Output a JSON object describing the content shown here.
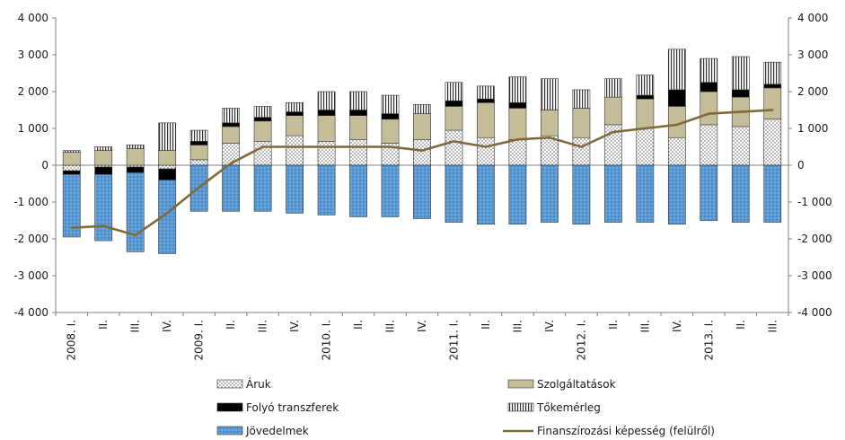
{
  "chart_data": {
    "type": "bar",
    "subtype": "stacked-bar-with-line",
    "title": "",
    "xlabel": "",
    "ylabel": "",
    "ylim": [
      -4000,
      4000
    ],
    "yticks": [
      4000,
      3000,
      2000,
      1000,
      0,
      -1000,
      -2000,
      -3000,
      -4000
    ],
    "ytick_labels": [
      "4 000",
      "3 000",
      "2 000",
      "1 000",
      "0",
      "-1 000",
      "-2 000",
      "-3 000",
      "-4 000"
    ],
    "right_axis": {
      "ylim": [
        -4000,
        4000
      ]
    },
    "grid": false,
    "legend_position": "bottom",
    "categories": [
      "2008. I.",
      "II.",
      "III.",
      "IV.",
      "2009. I.",
      "II.",
      "III.",
      "IV.",
      "2010. I.",
      "II.",
      "III.",
      "IV.",
      "2011. I.",
      "II.",
      "III.",
      "IV.",
      "2012. I.",
      "II.",
      "III.",
      "IV.",
      "2013. I.",
      "II.",
      "III."
    ],
    "series": [
      {
        "name": "Áruk",
        "type": "bar",
        "color": "#ffffff",
        "pattern": "dots",
        "values": [
          -150,
          -50,
          -50,
          -100,
          150,
          600,
          650,
          800,
          650,
          700,
          600,
          700,
          950,
          750,
          700,
          800,
          750,
          1100,
          1000,
          750,
          1100,
          1050,
          1250
        ]
      },
      {
        "name": "Szolgáltatások",
        "type": "bar",
        "color": "#c4bd97",
        "values": [
          350,
          400,
          450,
          400,
          400,
          450,
          550,
          550,
          700,
          650,
          650,
          700,
          650,
          950,
          850,
          700,
          800,
          750,
          800,
          850,
          900,
          800,
          850
        ]
      },
      {
        "name": "Folyó transzferek",
        "type": "bar",
        "color": "#000000",
        "values": [
          -100,
          -200,
          -150,
          -300,
          100,
          100,
          100,
          100,
          150,
          150,
          150,
          0,
          150,
          100,
          150,
          0,
          0,
          0,
          100,
          450,
          250,
          200,
          100
        ]
      },
      {
        "name": "Tőkemérleg",
        "type": "bar",
        "color": "#ffffff",
        "pattern": "vertical-hatch",
        "values": [
          50,
          100,
          100,
          750,
          300,
          400,
          300,
          250,
          500,
          500,
          500,
          250,
          500,
          350,
          700,
          850,
          500,
          500,
          550,
          1100,
          650,
          900,
          600
        ]
      },
      {
        "name": "Jövedelmek",
        "type": "bar",
        "color": "#5b9bd5",
        "pattern": "dots",
        "values": [
          -1700,
          -1800,
          -2150,
          -2000,
          -1250,
          -1250,
          -1250,
          -1300,
          -1350,
          -1400,
          -1400,
          -1450,
          -1550,
          -1600,
          -1600,
          -1550,
          -1600,
          -1550,
          -1550,
          -1600,
          -1500,
          -1550,
          -1550
        ]
      },
      {
        "name": "Finanszírozási képesség (felülről)",
        "type": "line",
        "color": "#7f6a3a",
        "values": [
          -1700,
          -1650,
          -1900,
          -1300,
          -600,
          50,
          500,
          500,
          500,
          500,
          500,
          400,
          650,
          500,
          700,
          750,
          500,
          900,
          1000,
          1100,
          1400,
          1450,
          1500
        ]
      }
    ]
  }
}
